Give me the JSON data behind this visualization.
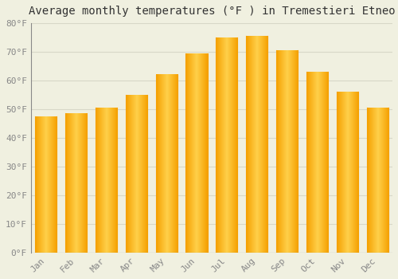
{
  "title": "Average monthly temperatures (°F ) in Tremestieri Etneo",
  "months": [
    "Jan",
    "Feb",
    "Mar",
    "Apr",
    "May",
    "Jun",
    "Jul",
    "Aug",
    "Sep",
    "Oct",
    "Nov",
    "Dec"
  ],
  "values": [
    47.5,
    48.5,
    50.5,
    55,
    62,
    69.5,
    75,
    75.5,
    70.5,
    63,
    56,
    50.5
  ],
  "bar_color_dark": "#F5A000",
  "bar_color_light": "#FFD04A",
  "ylim": [
    0,
    80
  ],
  "yticks": [
    0,
    10,
    20,
    30,
    40,
    50,
    60,
    70,
    80
  ],
  "ytick_labels": [
    "0°F",
    "10°F",
    "20°F",
    "30°F",
    "40°F",
    "50°F",
    "60°F",
    "70°F",
    "80°F"
  ],
  "background_color": "#f0f0e0",
  "grid_color": "#d8d8c8",
  "title_fontsize": 10,
  "tick_fontsize": 8,
  "tick_color": "#888888",
  "bar_width": 0.72
}
